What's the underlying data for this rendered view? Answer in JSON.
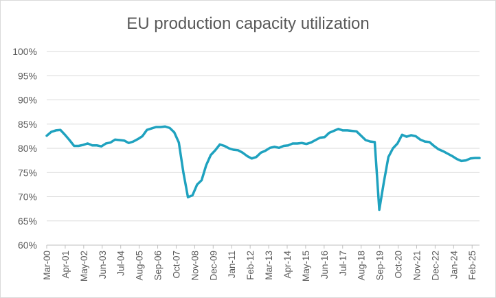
{
  "chart_data": {
    "type": "line",
    "title": "EU production capacity utilization",
    "xlabel": "",
    "ylabel": "",
    "ylim": [
      60,
      100
    ],
    "yticks": [
      "60%",
      "65%",
      "70%",
      "75%",
      "80%",
      "85%",
      "90%",
      "95%",
      "100%"
    ],
    "yvalues": [
      60,
      65,
      70,
      75,
      80,
      85,
      90,
      95,
      100
    ],
    "xticks": [
      "Mar-00",
      "Apr-01",
      "May-02",
      "Jun-03",
      "Jul-04",
      "Aug-05",
      "Sep-06",
      "Oct-07",
      "Nov-08",
      "Dec-09",
      "Jan-11",
      "Feb-12",
      "Mar-13",
      "Apr-14",
      "May-15",
      "Jun-16",
      "Jul-17",
      "Aug-18",
      "Sep-19",
      "Oct-20",
      "Nov-21",
      "Dec-22",
      "Jan-24",
      "Feb-25"
    ],
    "grid": true,
    "color": "#1fa2bf",
    "series": [
      {
        "name": "EU production capacity utilization",
        "values": [
          82.6,
          83.4,
          83.7,
          83.8,
          82.8,
          81.7,
          80.5,
          80.5,
          80.7,
          81.0,
          80.6,
          80.6,
          80.4,
          81.0,
          81.2,
          81.8,
          81.7,
          81.6,
          81.1,
          81.4,
          81.9,
          82.5,
          83.8,
          84.1,
          84.4,
          84.4,
          84.5,
          84.2,
          83.3,
          81.2,
          75.0,
          69.9,
          70.3,
          72.5,
          73.4,
          76.5,
          78.6,
          79.6,
          80.8,
          80.5,
          80.0,
          79.7,
          79.6,
          79.1,
          78.4,
          77.9,
          78.2,
          79.1,
          79.5,
          80.1,
          80.3,
          80.1,
          80.5,
          80.6,
          81.0,
          81.0,
          81.1,
          80.9,
          81.2,
          81.7,
          82.2,
          82.3,
          83.2,
          83.6,
          84.0,
          83.7,
          83.7,
          83.6,
          83.5,
          82.6,
          81.7,
          81.4,
          81.3,
          67.3,
          73.0,
          78.2,
          80.0,
          81.0,
          82.8,
          82.4,
          82.7,
          82.5,
          81.8,
          81.4,
          81.3,
          80.5,
          79.8,
          79.4,
          78.9,
          78.4,
          77.8,
          77.4,
          77.5,
          77.9,
          78.0,
          78.0
        ]
      }
    ]
  }
}
